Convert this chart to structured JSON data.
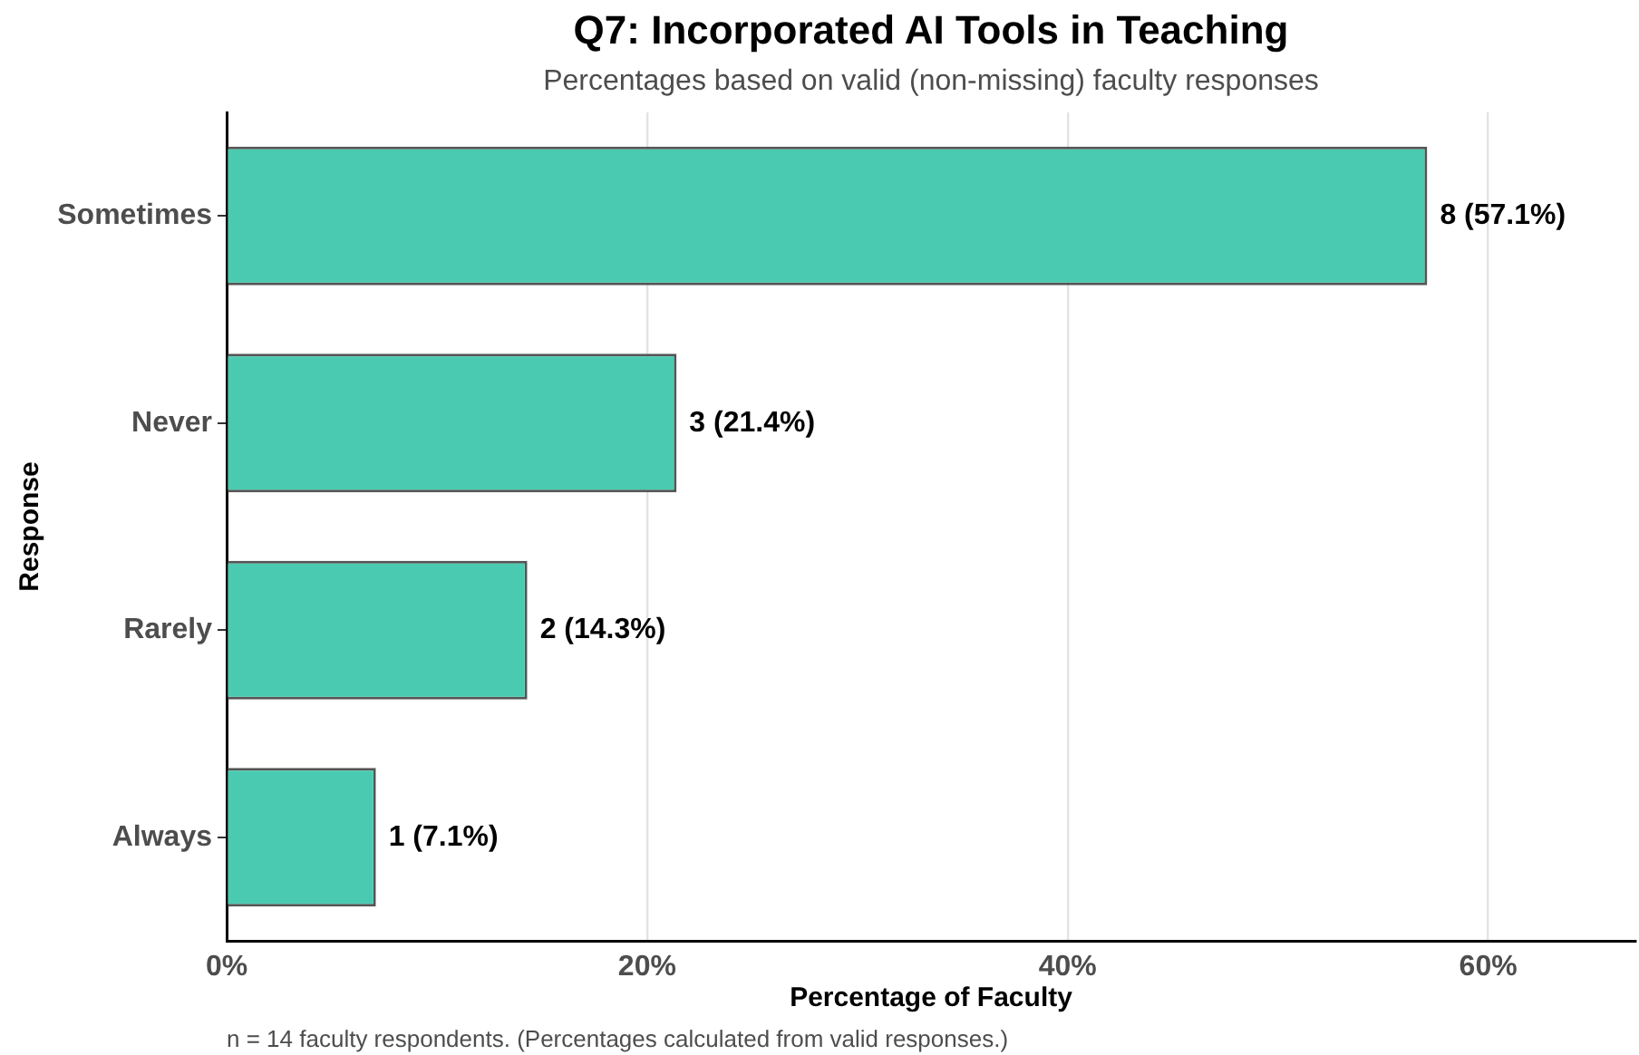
{
  "chart_data": {
    "type": "bar",
    "title": "Q7: Incorporated AI Tools in Teaching",
    "subtitle": "Percentages based on valid (non-missing) faculty responses",
    "xlabel": "Percentage of Faculty",
    "ylabel": "Response",
    "annotations": [
      "n = 14 faculty respondents. (Percentages calculated from valid responses.)"
    ],
    "orientation": "horizontal",
    "categories": [
      "Sometimes",
      "Never",
      "Rarely",
      "Always"
    ],
    "values": [
      57.1,
      21.4,
      14.3,
      7.1
    ],
    "value_labels": [
      "8 (57.1%)",
      "3 (21.4%)",
      "2 (14.3%)",
      "1 (7.1%)"
    ],
    "color": "#4acab0",
    "xlim": [
      0,
      67
    ],
    "xticks": [
      {
        "value": 0,
        "label": "0%"
      },
      {
        "value": 20,
        "label": "20%"
      },
      {
        "value": 40,
        "label": "40%"
      },
      {
        "value": 60,
        "label": "60%"
      }
    ],
    "grid": "x"
  }
}
